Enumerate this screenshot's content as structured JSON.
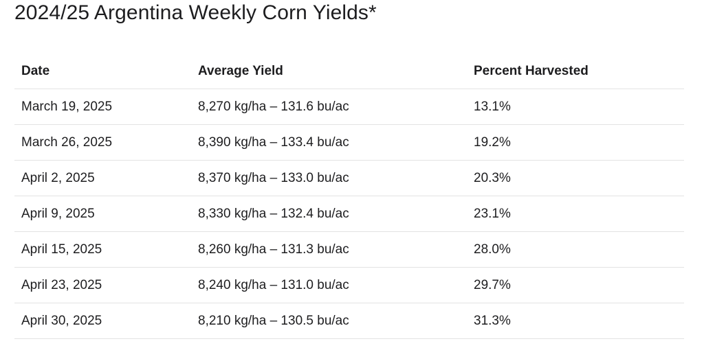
{
  "title": "2024/25 Argentina Weekly Corn Yields*",
  "table": {
    "headers": [
      "Date",
      "Average Yield",
      "Percent Harvested"
    ],
    "rows": [
      [
        "March 19, 2025",
        "8,270 kg/ha – 131.6 bu/ac",
        "13.1%"
      ],
      [
        "March 26, 2025",
        "8,390 kg/ha – 133.4 bu/ac",
        "19.2%"
      ],
      [
        "April 2, 2025",
        "8,370 kg/ha – 133.0 bu/ac",
        "20.3%"
      ],
      [
        "April 9, 2025",
        "8,330 kg/ha – 132.4 bu/ac",
        "23.1%"
      ],
      [
        "April 15, 2025",
        "8,260 kg/ha – 131.3 bu/ac",
        "28.0%"
      ],
      [
        "April 23, 2025",
        "8,240 kg/ha – 131.0 bu/ac",
        "29.7%"
      ],
      [
        "April 30, 2025",
        "8,210 kg/ha – 130.5 bu/ac",
        "31.3%"
      ]
    ]
  }
}
